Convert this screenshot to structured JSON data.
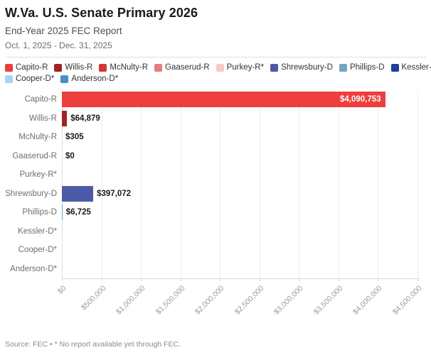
{
  "header": {
    "title": "W.Va. U.S. Senate Primary 2026",
    "subtitle": "End-Year 2025 FEC Report",
    "date_range": "Oct. 1, 2025 - Dec. 31, 2025"
  },
  "chart_data": {
    "type": "bar",
    "orientation": "horizontal",
    "title": "W.Va. U.S. Senate Primary 2026",
    "subtitle": "End-Year 2025 FEC Report",
    "categories": [
      "Capito-R",
      "Willis-R",
      "McNulty-R",
      "Gaaserud-R",
      "Purkey-R*",
      "Shrewsbury-D",
      "Phillips-D",
      "Kessler-D*",
      "Cooper-D*",
      "Anderson-D*"
    ],
    "values": [
      4090753,
      64879,
      305,
      0,
      null,
      397072,
      6725,
      null,
      null,
      null
    ],
    "value_labels": [
      "$4,090,753",
      "$64,879",
      "$305",
      "$0",
      null,
      "$397,072",
      "$6,725",
      null,
      null,
      null
    ],
    "colors": [
      "#ee3e3e",
      "#a02424",
      "#d43636",
      "#e57e7e",
      "#f6caca",
      "#4c5aa7",
      "#74a3c4",
      "#1f3f9d",
      "#a9d4ee",
      "#4a8fc3"
    ],
    "xlim": [
      0,
      4500000
    ],
    "x_tick_values": [
      0,
      500000,
      1000000,
      1500000,
      2000000,
      2500000,
      3000000,
      3500000,
      4000000,
      4500000
    ],
    "x_tick_labels": [
      "$0",
      "$500,000",
      "$1,000,000",
      "$1,500,000",
      "$2,000,000",
      "$2,500,000",
      "$3,000,000",
      "$3,500,000",
      "$4,000,000",
      "$4,500,000"
    ],
    "grid": true,
    "legend_position": "top",
    "legend_row_split": 8,
    "inside_label_min_width": 120
  },
  "footer": {
    "source": "Source: FEC • * No report available yet through FEC."
  }
}
